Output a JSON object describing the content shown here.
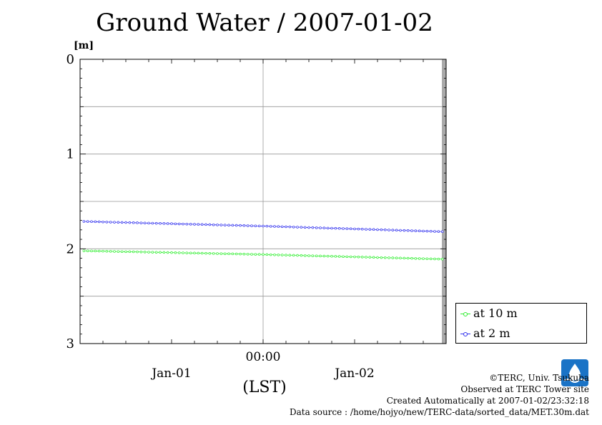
{
  "header": {
    "title": "Ground Water / 2007-01-02",
    "unit": "[m]"
  },
  "chart_data": {
    "type": "line",
    "title": "Ground Water / 2007-01-02",
    "ylabel": "[m]",
    "xlabel": "(LST)",
    "ylim": [
      0,
      3
    ],
    "y_inverted": true,
    "yticks": [
      "0",
      "1",
      "2",
      "3"
    ],
    "xlim_hours": [
      -24,
      24
    ],
    "x_tick_labels": [
      {
        "label": "00:00",
        "hour": 0
      },
      {
        "label": "Jan-01",
        "hour": -12
      },
      {
        "label": "Jan-02",
        "hour": 12
      }
    ],
    "grid": true,
    "legend_position": "bottom-right",
    "series": [
      {
        "name": "at 10 m",
        "color": "#33ee33",
        "x_hours": [
          -24,
          0,
          24
        ],
        "values": [
          2.02,
          2.06,
          2.11
        ]
      },
      {
        "name": "at 2 m",
        "color": "#3333ee",
        "x_hours": [
          -24,
          0,
          24
        ],
        "values": [
          1.71,
          1.76,
          1.82
        ]
      }
    ]
  },
  "credits": {
    "copyright": "©TERC, Univ. Tsukuba",
    "observed": "Observed at TERC Tower site",
    "created": "Created Automatically at 2007-01-02/23:32:18",
    "source": "Data source : /home/hojyo/new/TERC-data/sorted_data/MET.30m.dat"
  },
  "colors": {
    "logo": "#1a73c6"
  }
}
